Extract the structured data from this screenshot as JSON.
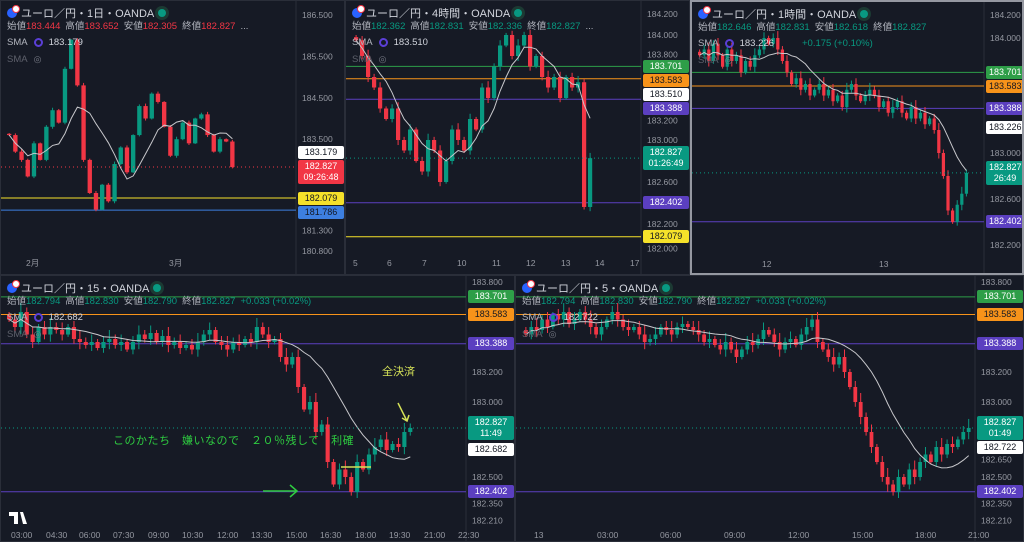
{
  "colors": {
    "up": "#089981",
    "down": "#f23645",
    "bg": "#161a25",
    "sma": "#c8c8cc"
  },
  "panels": [
    {
      "id": "daily",
      "title": "ユーロ／円・1日・OANDA",
      "ohlc": {
        "open_label": "始値",
        "open": "183.444",
        "high_label": "高値",
        "high": "183.652",
        "low_label": "安値",
        "low": "182.305",
        "close_label": "終値",
        "close": "182.827",
        "more": "..."
      },
      "ohlc_color": "#f23645",
      "sma_label": "SMA",
      "sma_value": "183.179",
      "sma2_label": "SMA",
      "y_ticks": [
        "186.500",
        "185.500",
        "184.500",
        "183.500",
        "181.300",
        "180.800"
      ],
      "x_ticks": [
        "2月",
        "3月"
      ],
      "price_labels": [
        {
          "value": "183.179",
          "color": "#ffffff",
          "text": "#131722"
        },
        {
          "value": "182.827",
          "sub": "09:26:48",
          "color": "#f23645",
          "text": "#ffffff"
        },
        {
          "value": "182.079",
          "color": "#f5e12a",
          "text": "#131722",
          "line": true
        },
        {
          "value": "181.786",
          "color": "#3d7fe0",
          "text": "#131722",
          "line": true
        }
      ],
      "closes": [
        183.6,
        183.2,
        183.0,
        182.6,
        183.4,
        183.0,
        183.8,
        184.2,
        183.9,
        185.2,
        185.9,
        184.8,
        183.0,
        182.2,
        181.8,
        182.4,
        182.0,
        182.9,
        183.3,
        182.7,
        183.6,
        184.3,
        184.0,
        184.6,
        184.4,
        183.8,
        183.1,
        183.5,
        183.9,
        183.4,
        184.0,
        184.1,
        183.6,
        183.2,
        183.5,
        183.444,
        182.827
      ]
    },
    {
      "id": "h4",
      "title": "ユーロ／円・4時間・OANDA",
      "ohlc": {
        "open_label": "始値",
        "open": "182.362",
        "high_label": "高値",
        "high": "182.831",
        "low_label": "安値",
        "low": "182.336",
        "close_label": "終値",
        "close": "182.827",
        "more": "..."
      },
      "ohlc_color": "#089981",
      "sma_label": "SMA",
      "sma_value": "183.510",
      "sma2_label": "SMA",
      "y_ticks": [
        "184.200",
        "184.000",
        "183.800",
        "183.200",
        "183.000",
        "182.600",
        "182.200",
        "182.000"
      ],
      "x_ticks": [
        "5",
        "6",
        "7",
        "10",
        "11",
        "12",
        "13",
        "14",
        "17"
      ],
      "price_labels": [
        {
          "value": "183.701",
          "color": "#2e9e48",
          "text": "#ffffff",
          "line": true
        },
        {
          "value": "183.583",
          "color": "#f7931a",
          "text": "#131722",
          "line": true
        },
        {
          "value": "183.510",
          "color": "#ffffff",
          "text": "#131722"
        },
        {
          "value": "183.388",
          "color": "#5b3fc0",
          "text": "#ffffff",
          "line": true
        },
        {
          "value": "182.827",
          "sub": "01:26:49",
          "color": "#089981",
          "text": "#ffffff"
        },
        {
          "value": "182.402",
          "color": "#5b3fc0",
          "text": "#ffffff",
          "line": true
        },
        {
          "value": "182.079",
          "color": "#f5e12a",
          "text": "#131722",
          "line": true
        }
      ],
      "closes": [
        183.95,
        183.8,
        183.6,
        183.5,
        183.3,
        183.2,
        183.3,
        183.0,
        182.9,
        183.1,
        182.8,
        182.7,
        183.0,
        182.9,
        182.6,
        182.8,
        183.1,
        183.0,
        182.9,
        183.2,
        183.1,
        183.5,
        183.4,
        183.7,
        183.9,
        184.0,
        183.8,
        183.9,
        184.0,
        183.7,
        183.8,
        183.6,
        183.5,
        183.6,
        183.4,
        183.6,
        183.5,
        183.55,
        182.362,
        182.827
      ]
    },
    {
      "id": "h1",
      "title": "ユーロ／円・1時間・OANDA",
      "ohlc": {
        "open_label": "始値",
        "open": "182.646",
        "high_label": "高値",
        "high": "182.831",
        "low_label": "安値",
        "low": "182.618",
        "close_label": "終値",
        "close": "182.827",
        "change": "+0.175 (+0.10%)"
      },
      "ohlc_color": "#089981",
      "sma_label": "SMA",
      "sma_value": "183.226",
      "sma2_label": "SMA",
      "y_ticks": [
        "184.200",
        "184.000",
        "183.000",
        "182.600",
        "182.200"
      ],
      "x_ticks": [
        "12",
        "13"
      ],
      "price_labels": [
        {
          "value": "183.701",
          "color": "#2e9e48",
          "text": "#ffffff",
          "line": true
        },
        {
          "value": "183.583",
          "color": "#f7931a",
          "text": "#131722",
          "line": true
        },
        {
          "value": "183.388",
          "color": "#5b3fc0",
          "text": "#ffffff",
          "line": true
        },
        {
          "value": "183.226",
          "color": "#ffffff",
          "text": "#131722"
        },
        {
          "value": "182.827",
          "sub": "26:49",
          "color": "#089981",
          "text": "#ffffff"
        },
        {
          "value": "182.402",
          "color": "#5b3fc0",
          "text": "#ffffff",
          "line": true
        }
      ],
      "closes": [
        183.85,
        183.9,
        183.8,
        183.95,
        183.85,
        183.75,
        183.9,
        183.8,
        183.85,
        183.7,
        183.8,
        183.75,
        183.85,
        183.9,
        184.0,
        183.95,
        184.0,
        183.9,
        183.8,
        183.7,
        183.6,
        183.65,
        183.55,
        183.6,
        183.5,
        183.55,
        183.6,
        183.5,
        183.55,
        183.45,
        183.5,
        183.4,
        183.55,
        183.6,
        183.5,
        183.45,
        183.5,
        183.55,
        183.5,
        183.4,
        183.45,
        183.35,
        183.4,
        183.45,
        183.35,
        183.3,
        183.4,
        183.3,
        183.35,
        183.25,
        183.3,
        183.2,
        183.0,
        182.8,
        182.5,
        182.4,
        182.55,
        182.646,
        182.827
      ]
    },
    {
      "id": "m15",
      "title": "ユーロ／円・15・OANDA",
      "ohlc": {
        "open_label": "始値",
        "open": "182.794",
        "high_label": "高値",
        "high": "182.830",
        "low_label": "安値",
        "low": "182.790",
        "close_label": "終値",
        "close": "182.827",
        "change": "+0.033 (+0.02%)"
      },
      "ohlc_color": "#089981",
      "sma_label": "SMA",
      "sma_value": "182.682",
      "sma2_label": "SMA",
      "y_ticks": [
        "183.800",
        "183.200",
        "183.000",
        "182.500",
        "182.350",
        "182.210"
      ],
      "x_ticks": [
        "03:00",
        "04:30",
        "06:00",
        "07:30",
        "09:00",
        "10:30",
        "12:00",
        "13:30",
        "15:00",
        "16:30",
        "18:00",
        "19:30",
        "21:00",
        "22:30"
      ],
      "price_labels": [
        {
          "value": "183.701",
          "color": "#2e9e48",
          "text": "#ffffff",
          "line": true
        },
        {
          "value": "183.583",
          "color": "#f7931a",
          "text": "#131722",
          "line": true
        },
        {
          "value": "183.388",
          "color": "#5b3fc0",
          "text": "#ffffff",
          "line": true
        },
        {
          "value": "182.827",
          "sub": "11:49",
          "color": "#089981",
          "text": "#ffffff"
        },
        {
          "value": "182.682",
          "color": "#ffffff",
          "text": "#131722"
        },
        {
          "value": "182.402",
          "color": "#5b3fc0",
          "text": "#ffffff",
          "line": true
        }
      ],
      "annotations": {
        "close_all": "全決済",
        "comment": "このかたち　嫌いなので　２０％残して　利確"
      },
      "closes": [
        183.55,
        183.5,
        183.6,
        183.45,
        183.4,
        183.5,
        183.45,
        183.5,
        183.48,
        183.45,
        183.5,
        183.42,
        183.4,
        183.38,
        183.4,
        183.36,
        183.4,
        183.42,
        183.38,
        183.4,
        183.35,
        183.4,
        183.45,
        183.42,
        183.46,
        183.4,
        183.44,
        183.38,
        183.4,
        183.36,
        183.38,
        183.35,
        183.4,
        183.45,
        183.48,
        183.4,
        183.38,
        183.35,
        183.4,
        183.38,
        183.42,
        183.4,
        183.5,
        183.45,
        183.4,
        183.42,
        183.3,
        183.25,
        183.3,
        183.1,
        182.95,
        183.0,
        182.8,
        182.85,
        182.6,
        182.45,
        182.55,
        182.5,
        182.4,
        182.6,
        182.55,
        182.65,
        182.7,
        182.75,
        182.68,
        182.72,
        182.7,
        182.8,
        182.827
      ]
    },
    {
      "id": "m5",
      "title": "ユーロ／円・5・OANDA",
      "ohlc": {
        "open_label": "始値",
        "open": "182.794",
        "high_label": "高値",
        "high": "182.830",
        "low_label": "安値",
        "low": "182.790",
        "close_label": "終値",
        "close": "182.827",
        "change": "+0.033 (+0.02%)"
      },
      "ohlc_color": "#089981",
      "sma_label": "SMA",
      "sma_value": "182.722",
      "sma2_label": "SMA",
      "y_ticks": [
        "183.800",
        "183.200",
        "183.000",
        "182.650",
        "182.500",
        "182.350",
        "182.210"
      ],
      "x_ticks": [
        "13",
        "03:00",
        "06:00",
        "09:00",
        "12:00",
        "15:00",
        "18:00",
        "21:00"
      ],
      "price_labels": [
        {
          "value": "183.701",
          "color": "#2e9e48",
          "text": "#ffffff",
          "line": true
        },
        {
          "value": "183.583",
          "color": "#f7931a",
          "text": "#131722",
          "line": true
        },
        {
          "value": "183.388",
          "color": "#5b3fc0",
          "text": "#ffffff",
          "line": true
        },
        {
          "value": "182.827",
          "sub": "01:49",
          "color": "#089981",
          "text": "#ffffff"
        },
        {
          "value": "182.722",
          "color": "#ffffff",
          "text": "#131722"
        },
        {
          "value": "182.402",
          "color": "#5b3fc0",
          "text": "#ffffff",
          "line": true
        }
      ],
      "closes": [
        183.45,
        183.5,
        183.48,
        183.55,
        183.5,
        183.58,
        183.55,
        183.6,
        183.52,
        183.55,
        183.6,
        183.55,
        183.5,
        183.45,
        183.5,
        183.55,
        183.6,
        183.55,
        183.5,
        183.48,
        183.5,
        183.45,
        183.4,
        183.42,
        183.45,
        183.5,
        183.48,
        183.45,
        183.5,
        183.52,
        183.5,
        183.48,
        183.45,
        183.4,
        183.42,
        183.38,
        183.35,
        183.4,
        183.35,
        183.3,
        183.35,
        183.4,
        183.38,
        183.42,
        183.48,
        183.45,
        183.4,
        183.35,
        183.4,
        183.42,
        183.38,
        183.45,
        183.5,
        183.55,
        183.4,
        183.35,
        183.3,
        183.25,
        183.3,
        183.2,
        183.1,
        183.0,
        182.9,
        182.8,
        182.7,
        182.6,
        182.5,
        182.45,
        182.4,
        182.5,
        182.45,
        182.55,
        182.5,
        182.6,
        182.65,
        182.6,
        182.7,
        182.65,
        182.72,
        182.7,
        182.75,
        182.8,
        182.827
      ]
    }
  ]
}
